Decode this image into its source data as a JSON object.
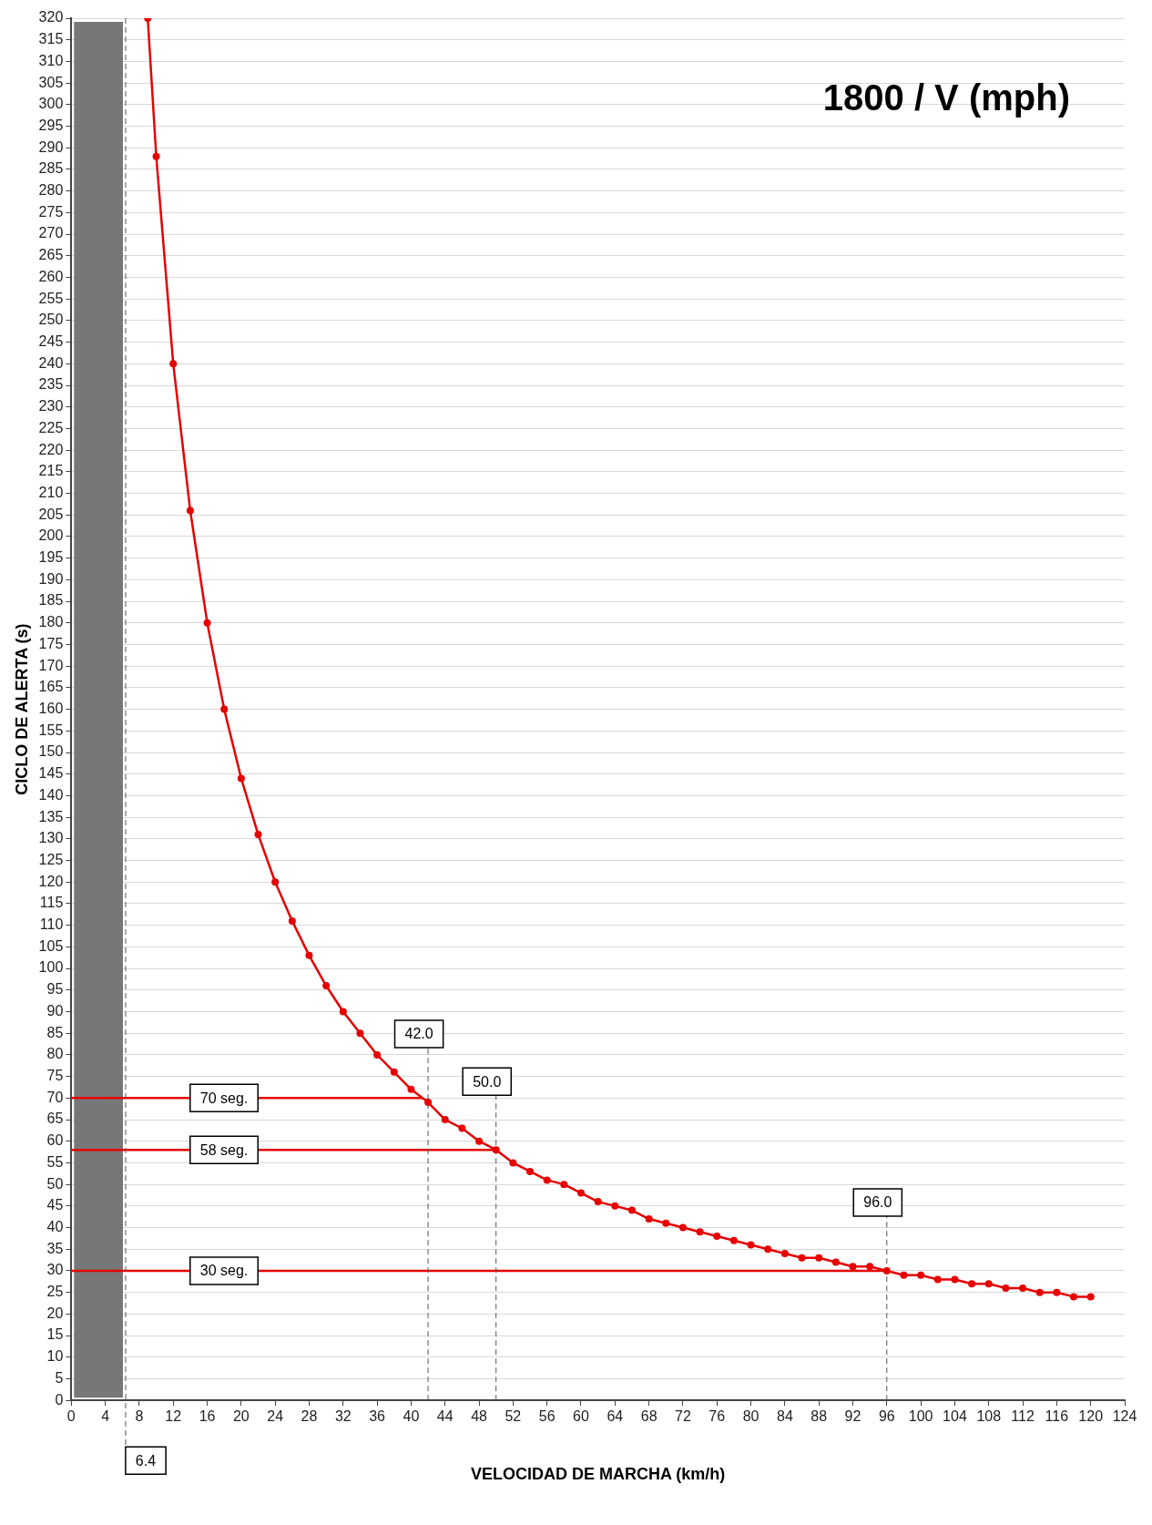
{
  "chart_data": {
    "type": "line",
    "title": "1800 / V (mph)",
    "xlabel": "VELOCIDAD DE MARCHA (km/h)",
    "ylabel": "CICLO DE ALERTA (s)",
    "x": [
      9,
      10,
      12,
      14,
      16,
      18,
      20,
      22,
      24,
      26,
      28,
      30,
      32,
      34,
      36,
      38,
      40,
      42,
      44,
      46,
      48,
      50,
      52,
      54,
      56,
      58,
      60,
      62,
      64,
      66,
      68,
      70,
      72,
      74,
      76,
      78,
      80,
      82,
      84,
      86,
      88,
      90,
      92,
      94,
      96,
      98,
      100,
      102,
      104,
      106,
      108,
      110,
      112,
      114,
      116,
      118,
      120
    ],
    "values": [
      320,
      288,
      240,
      206,
      180,
      160,
      144,
      131,
      120,
      111,
      103,
      96,
      90,
      85,
      80,
      76,
      72,
      69,
      65,
      63,
      60,
      58,
      55,
      53,
      51,
      50,
      48,
      46,
      45,
      44,
      42,
      41,
      40,
      39,
      38,
      37,
      36,
      35,
      34,
      33,
      33,
      32,
      31,
      31,
      30,
      29,
      29,
      28,
      28,
      27,
      27,
      26,
      26,
      25,
      25,
      24,
      24
    ],
    "color": "#e60000",
    "marker": "circle",
    "line_style": "solid",
    "xlim": [
      0,
      124
    ],
    "xticks": [
      0,
      4,
      8,
      12,
      16,
      20,
      24,
      28,
      32,
      36,
      40,
      44,
      48,
      52,
      56,
      60,
      64,
      68,
      72,
      76,
      80,
      84,
      88,
      92,
      96,
      100,
      104,
      108,
      112,
      116,
      120,
      124
    ],
    "ylim": [
      0,
      320
    ],
    "yticks": [
      0,
      5,
      10,
      15,
      20,
      25,
      30,
      35,
      40,
      45,
      50,
      55,
      60,
      65,
      70,
      75,
      80,
      85,
      90,
      95,
      100,
      105,
      110,
      115,
      120,
      125,
      130,
      135,
      140,
      145,
      150,
      155,
      160,
      165,
      170,
      175,
      180,
      185,
      190,
      195,
      200,
      205,
      210,
      215,
      220,
      225,
      230,
      235,
      240,
      245,
      250,
      255,
      260,
      265,
      270,
      275,
      280,
      285,
      290,
      295,
      300,
      305,
      310,
      315,
      320
    ],
    "grid": "y",
    "ref_lines": [
      {
        "axis": "y",
        "value": 70,
        "label": "70 seg.",
        "color": "#e60000",
        "line_style": "solid"
      },
      {
        "axis": "y",
        "value": 58,
        "label": "58 seg.",
        "color": "#e60000",
        "line_style": "solid"
      },
      {
        "axis": "y",
        "value": 30,
        "label": "30 seg.",
        "color": "#e60000",
        "line_style": "solid"
      },
      {
        "axis": "x",
        "value": 42,
        "label": "42.0",
        "color": "#555555",
        "line_style": "dashed"
      },
      {
        "axis": "x",
        "value": 50,
        "label": "50.0",
        "color": "#555555",
        "line_style": "dashed"
      },
      {
        "axis": "x",
        "value": 96,
        "label": "96.0",
        "color": "#555555",
        "line_style": "dashed"
      },
      {
        "axis": "x",
        "value": 6.4,
        "label": "6.4",
        "color": "#555555",
        "line_style": "dashed"
      }
    ],
    "bands": [
      {
        "axis": "x",
        "from": 0,
        "to": 6.4,
        "color": "#777777"
      }
    ]
  }
}
